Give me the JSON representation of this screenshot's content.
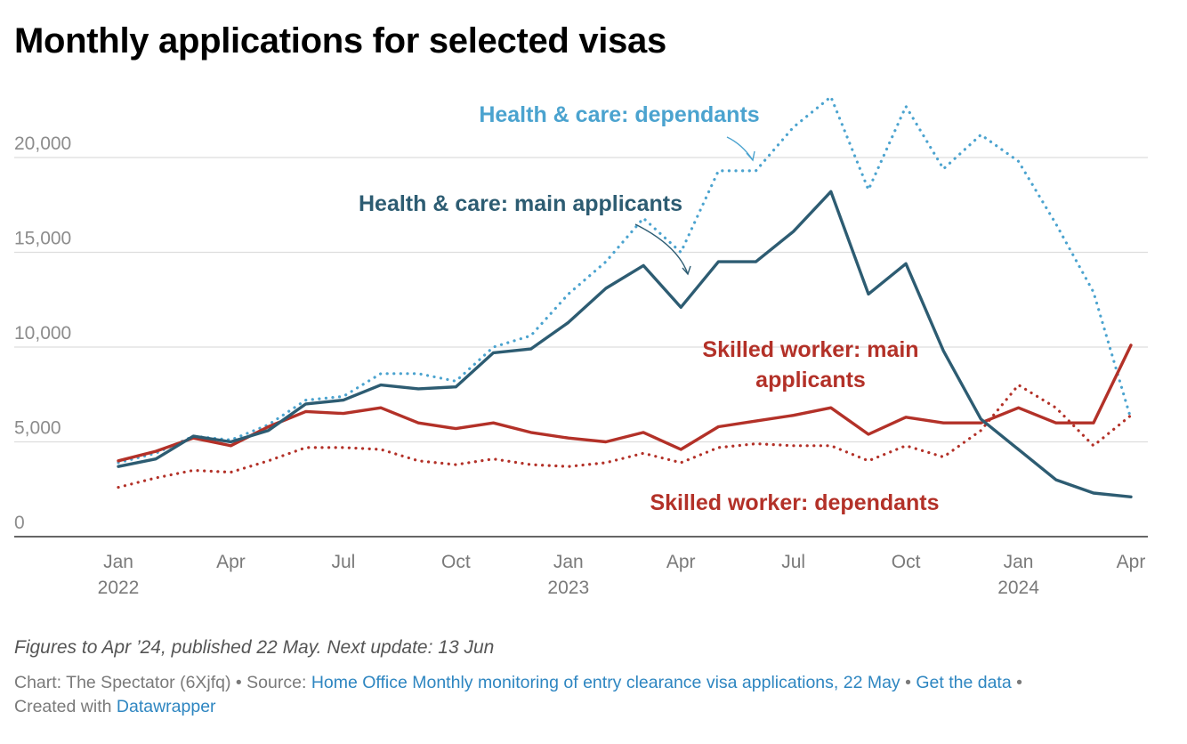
{
  "title": "Monthly applications for selected visas",
  "notes": "Figures to Apr ’24, published 22 May. Next update: 13 Jun",
  "footer": {
    "chart_prefix": "Chart: The Spectator (6Xjfq)",
    "sep1": " • Source: ",
    "source_link": "Home Office Monthly monitoring of entry clearance visa applications, 22 May",
    "sep2": " • ",
    "data_link": "Get the data",
    "sep3": " •",
    "created_prefix": "Created with ",
    "created_link": "Datawrapper"
  },
  "colors": {
    "health_dependants": "#4ba3cf",
    "health_main": "#2d5c72",
    "skilled_main": "#b33128",
    "skilled_dependants": "#b33128",
    "grid": "#dddddd",
    "axis": "#333333"
  },
  "chart_data": {
    "type": "line",
    "title": "Monthly applications for selected visas",
    "x": [
      "2022-01",
      "2022-02",
      "2022-03",
      "2022-04",
      "2022-05",
      "2022-06",
      "2022-07",
      "2022-08",
      "2022-09",
      "2022-10",
      "2022-11",
      "2022-12",
      "2023-01",
      "2023-02",
      "2023-03",
      "2023-04",
      "2023-05",
      "2023-06",
      "2023-07",
      "2023-08",
      "2023-09",
      "2023-10",
      "2023-11",
      "2023-12",
      "2024-01",
      "2024-02",
      "2024-03",
      "2024-04"
    ],
    "x_ticks": [
      {
        "index": 0,
        "label": "Jan",
        "year": "2022"
      },
      {
        "index": 3,
        "label": "Apr",
        "year": ""
      },
      {
        "index": 6,
        "label": "Jul",
        "year": ""
      },
      {
        "index": 9,
        "label": "Oct",
        "year": ""
      },
      {
        "index": 12,
        "label": "Jan",
        "year": "2023"
      },
      {
        "index": 15,
        "label": "Apr",
        "year": ""
      },
      {
        "index": 18,
        "label": "Jul",
        "year": ""
      },
      {
        "index": 21,
        "label": "Oct",
        "year": ""
      },
      {
        "index": 24,
        "label": "Jan",
        "year": "2024"
      },
      {
        "index": 27,
        "label": "Apr",
        "year": ""
      }
    ],
    "y_ticks": [
      {
        "value": 0,
        "label": "0"
      },
      {
        "value": 5000,
        "label": "5,000"
      },
      {
        "value": 10000,
        "label": "10,000"
      },
      {
        "value": 15000,
        "label": "15,000"
      },
      {
        "value": 20000,
        "label": "20,000"
      }
    ],
    "ylim": [
      0,
      23500
    ],
    "grid": true,
    "series": [
      {
        "key": "health_dependants",
        "name": "Health & care: dependants",
        "style": "dotted",
        "values": [
          3900,
          4400,
          5300,
          5100,
          5900,
          7200,
          7400,
          8600,
          8600,
          8200,
          10000,
          10600,
          12800,
          14500,
          16800,
          15000,
          19300,
          19300,
          21600,
          23200,
          18300,
          22700,
          19400,
          21200,
          19800,
          16500,
          12900,
          6200
        ]
      },
      {
        "key": "health_main",
        "name": "Health & care: main applicants",
        "style": "solid",
        "values": [
          3700,
          4100,
          5300,
          5000,
          5600,
          7000,
          7200,
          8000,
          7800,
          7900,
          9700,
          9900,
          11300,
          13100,
          14300,
          12100,
          14500,
          14500,
          16100,
          18200,
          12800,
          14400,
          9800,
          6200,
          4600,
          3000,
          2300,
          2100
        ]
      },
      {
        "key": "skilled_main",
        "name": "Skilled worker: main applicants",
        "style": "solid",
        "values": [
          4000,
          4500,
          5200,
          4800,
          5800,
          6600,
          6500,
          6800,
          6000,
          5700,
          6000,
          5500,
          5200,
          5000,
          5500,
          4600,
          5800,
          6100,
          6400,
          6800,
          5400,
          6300,
          6000,
          6000,
          6800,
          6000,
          6000,
          10100
        ]
      },
      {
        "key": "skilled_dependants",
        "name": "Skilled worker: dependants",
        "style": "dotted",
        "values": [
          2600,
          3100,
          3500,
          3400,
          4000,
          4700,
          4700,
          4600,
          4000,
          3800,
          4100,
          3800,
          3700,
          3900,
          4400,
          3900,
          4700,
          4900,
          4800,
          4800,
          4000,
          4800,
          4200,
          5600,
          8000,
          6800,
          4800,
          6400
        ]
      }
    ],
    "annotations": [
      {
        "series": "health_dependants",
        "text": "Health & care: dependants"
      },
      {
        "series": "health_main",
        "text": "Health & care: main applicants"
      },
      {
        "series": "skilled_main",
        "text_lines": [
          "Skilled worker: main",
          "applicants"
        ]
      },
      {
        "series": "skilled_dependants",
        "text": "Skilled worker: dependants"
      }
    ]
  }
}
